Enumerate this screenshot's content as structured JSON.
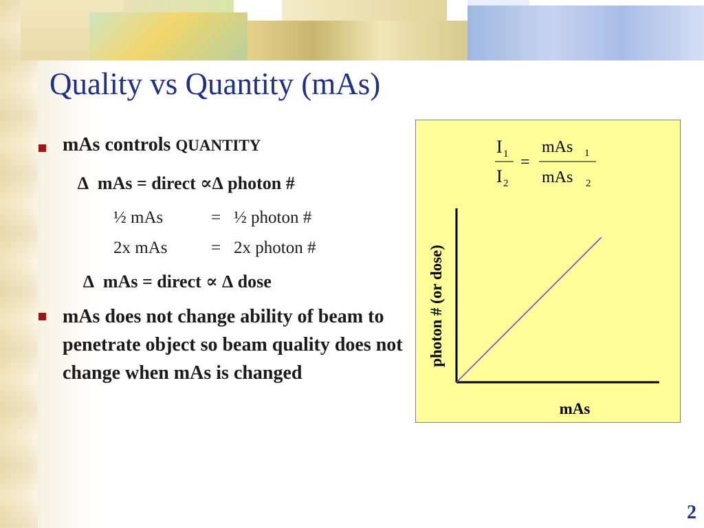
{
  "slide": {
    "title": "Quality vs Quantity (mAs)",
    "page_number": "2"
  },
  "bullets": {
    "b1": {
      "text": "mAs controls ",
      "emphasis": "QUANTITY"
    },
    "sub1": {
      "delta": "∆",
      "text": "mAs = direct ∝∆ photon #"
    },
    "rows": [
      {
        "left": "½ mAs",
        "eq": "=",
        "right": "½  photon #"
      },
      {
        "left": "2x mAs",
        "eq": "=",
        "right": "2x photon #"
      }
    ],
    "sub2": {
      "delta": "∆",
      "text": "mAs = direct ∝ ∆  dose"
    },
    "b2": "mAs does not change ability of beam to penetrate object so beam quality does not change when mAs is changed"
  },
  "formula": {
    "num_left": "I",
    "num_left_sub": "1",
    "den_left": "I",
    "den_left_sub": "2",
    "equals": "=",
    "num_right": "mAs",
    "num_right_sub": "1",
    "den_right": "mAs",
    "den_right_sub": "2"
  },
  "chart_data": {
    "type": "line",
    "xlabel": "mAs",
    "ylabel": "photon # (or dose)",
    "series": [
      {
        "x": [
          0,
          1
        ],
        "y": [
          0,
          1
        ]
      }
    ],
    "xlim": [
      0,
      1.4
    ],
    "ylim": [
      0,
      1.2
    ],
    "grid": false,
    "line_color": "#8a2be2"
  },
  "colors": {
    "title": "#1f2f8a",
    "bullet": "#a01414",
    "chart_background": "#ffff99"
  }
}
